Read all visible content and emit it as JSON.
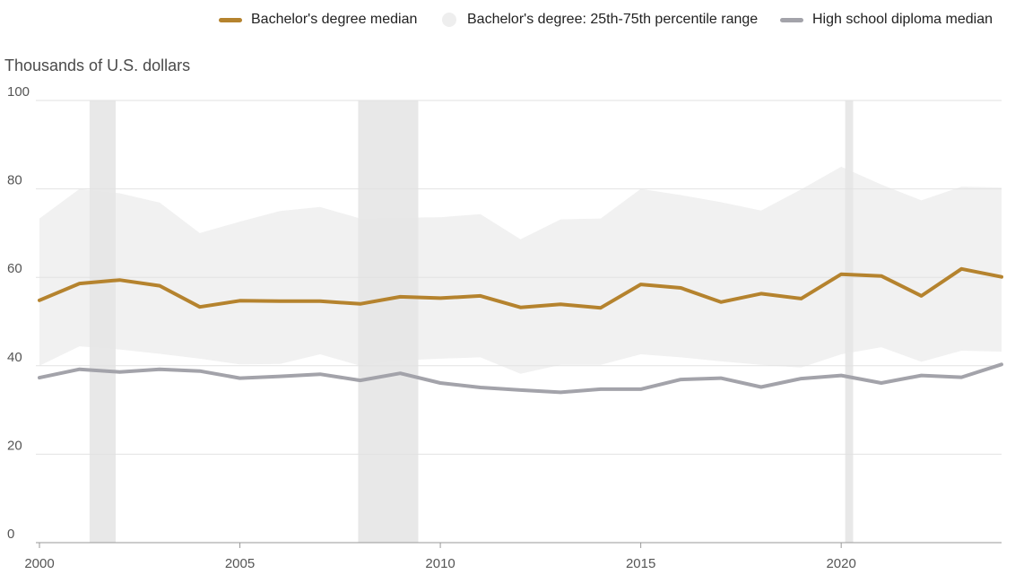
{
  "chart_data": {
    "type": "line",
    "ylabel": "Thousands of U.S. dollars",
    "xlabel": "",
    "ylim": [
      0,
      100
    ],
    "xlim": [
      2000,
      2024
    ],
    "yticks": [
      0,
      20,
      40,
      60,
      80,
      100
    ],
    "xticks": [
      2000,
      2005,
      2010,
      2015,
      2020
    ],
    "grid": true,
    "legend_position": "top-right",
    "legend": [
      {
        "label": "Bachelor's degree median",
        "color": "#b5832e",
        "kind": "line"
      },
      {
        "label": "Bachelor's degree: 25th-75th percentile range",
        "color": "#eeeeee",
        "kind": "band"
      },
      {
        "label": "High school diploma median",
        "color": "#a3a3aa",
        "kind": "line"
      }
    ],
    "recession_periods": [
      [
        2001.25,
        2001.9
      ],
      [
        2007.95,
        2009.45
      ],
      [
        2020.1,
        2020.3
      ]
    ],
    "x": [
      2000,
      2001,
      2002,
      2003,
      2004,
      2005,
      2006,
      2007,
      2008,
      2009,
      2010,
      2011,
      2012,
      2013,
      2014,
      2015,
      2016,
      2017,
      2018,
      2019,
      2020,
      2021,
      2022,
      2023,
      2024
    ],
    "series": [
      {
        "name": "Bachelor's degree median",
        "color": "#b5832e",
        "values": [
          54.8,
          58.6,
          59.4,
          58.1,
          53.3,
          54.7,
          54.6,
          54.6,
          54.0,
          55.6,
          55.3,
          55.8,
          53.2,
          53.9,
          53.1,
          58.4,
          57.6,
          54.4,
          56.3,
          55.2,
          60.7,
          60.3,
          55.8,
          61.9,
          60.1
        ]
      },
      {
        "name": "High school diploma median",
        "color": "#a3a3aa",
        "values": [
          37.3,
          39.2,
          38.6,
          39.2,
          38.8,
          37.2,
          37.6,
          38.1,
          36.7,
          38.3,
          36.1,
          35.1,
          34.5,
          34.0,
          34.7,
          34.7,
          36.9,
          37.2,
          35.2,
          37.1,
          37.8,
          36.1,
          37.8,
          37.4,
          40.3
        ]
      }
    ],
    "band": {
      "name": "Bachelor's degree: 25th-75th percentile range",
      "color": "#f1f1f1",
      "upper": [
        73.3,
        80.0,
        79.0,
        76.9,
        70.0,
        72.6,
        75.0,
        75.9,
        73.3,
        73.5,
        73.6,
        74.3,
        68.6,
        73.1,
        73.3,
        80.0,
        78.6,
        77.0,
        75.1,
        79.9,
        85.0,
        81.0,
        77.4,
        80.5,
        80.3
      ],
      "lower": [
        40.0,
        44.4,
        43.7,
        42.7,
        41.6,
        40.3,
        40.4,
        42.6,
        40.0,
        41.2,
        41.6,
        41.9,
        38.2,
        40.2,
        40.2,
        42.6,
        41.9,
        41.0,
        40.2,
        39.6,
        42.6,
        44.2,
        40.9,
        43.4,
        43.2
      ]
    }
  }
}
